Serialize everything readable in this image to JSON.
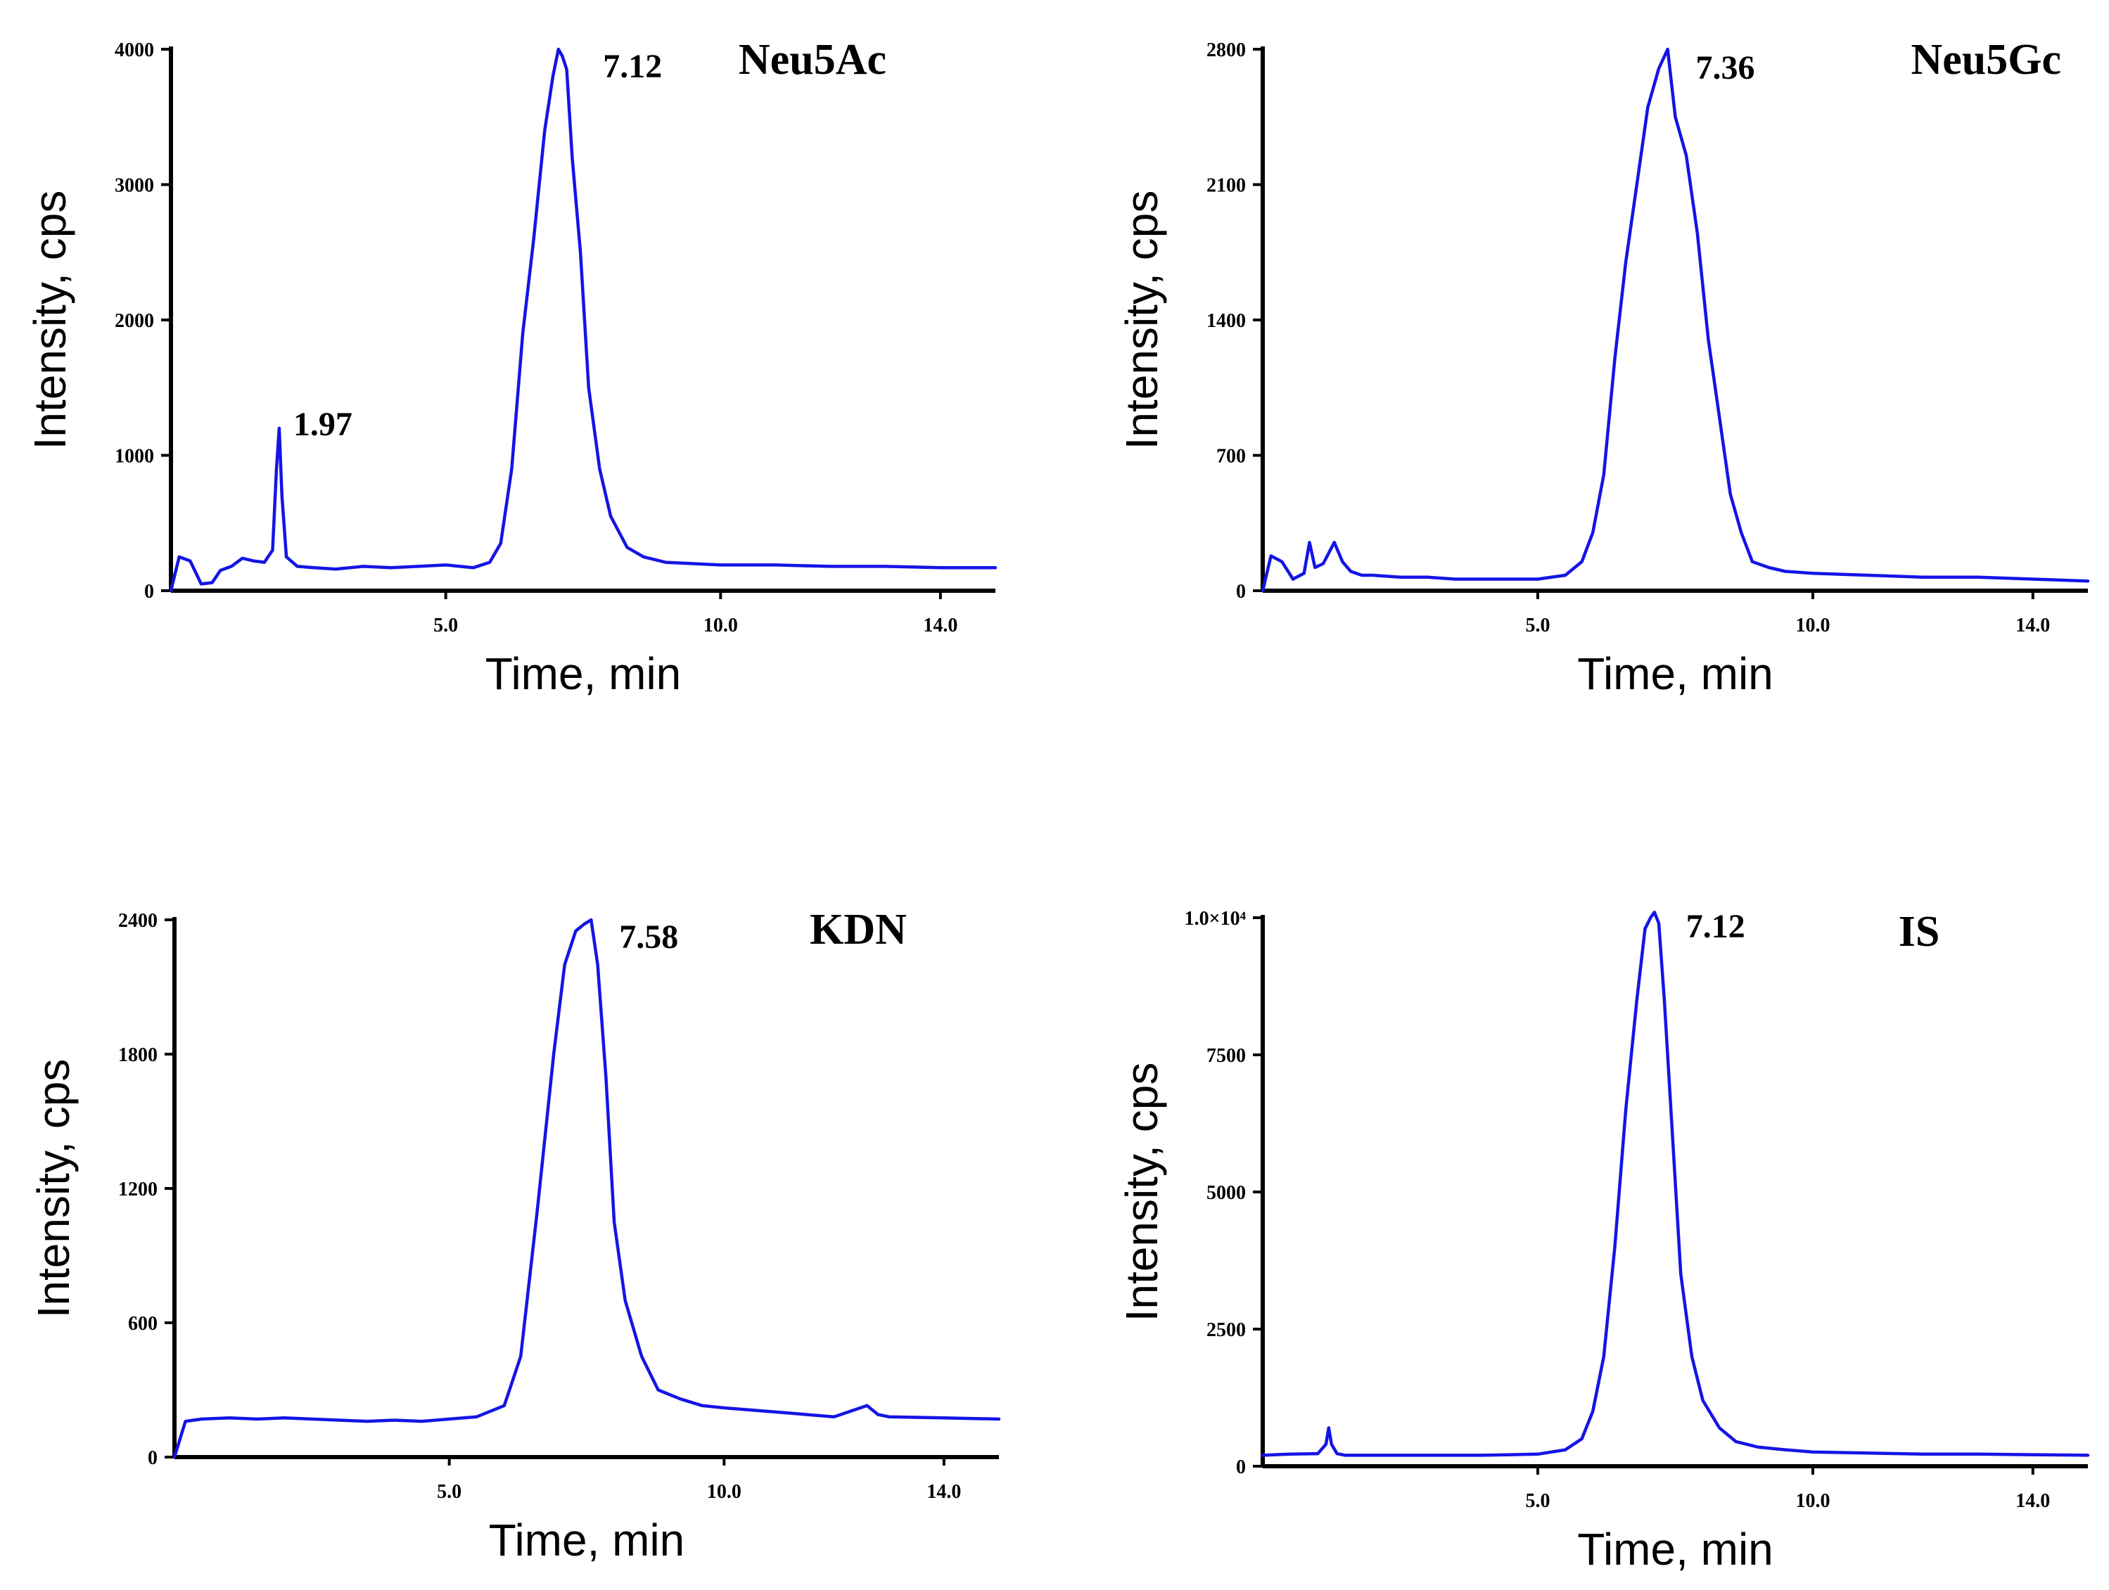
{
  "figure": {
    "line_color": "#1414e6",
    "axis_color": "#000000"
  },
  "chart_data": [
    {
      "type": "line",
      "title": "Neu5Ac",
      "xlabel": "Time, min",
      "ylabel": "Intensity, cps",
      "xlim": [
        0,
        15
      ],
      "ylim": [
        0,
        4000
      ],
      "xticks": [
        5.0,
        10.0,
        14.0
      ],
      "xtick_labels": [
        "5.0",
        "10.0",
        "14.0"
      ],
      "yticks": [
        0,
        1000,
        2000,
        3000,
        4000
      ],
      "ytick_labels": [
        "0",
        "1000",
        "2000",
        "3000",
        "4000"
      ],
      "peak_labels": [
        {
          "text": "7.12",
          "x": 7.12,
          "y": 4000
        },
        {
          "text": "1.97",
          "x": 1.97,
          "y": 1200
        }
      ],
      "series": [
        {
          "name": "Neu5Ac",
          "x": [
            0,
            0.15,
            0.35,
            0.55,
            0.75,
            0.9,
            1.1,
            1.3,
            1.5,
            1.7,
            1.85,
            1.92,
            1.97,
            2.02,
            2.1,
            2.3,
            2.6,
            3.0,
            3.5,
            4.0,
            4.5,
            5.0,
            5.5,
            5.8,
            6.0,
            6.2,
            6.4,
            6.6,
            6.8,
            6.95,
            7.05,
            7.12,
            7.2,
            7.3,
            7.45,
            7.6,
            7.8,
            8.0,
            8.3,
            8.6,
            9.0,
            9.5,
            10.0,
            11.0,
            12.0,
            13.0,
            14.0,
            15.0
          ],
          "y": [
            0,
            250,
            220,
            50,
            60,
            150,
            180,
            240,
            220,
            210,
            300,
            900,
            1200,
            700,
            250,
            180,
            170,
            160,
            180,
            170,
            180,
            190,
            170,
            210,
            350,
            900,
            1900,
            2600,
            3400,
            3800,
            4000,
            3950,
            3850,
            3200,
            2500,
            1500,
            900,
            550,
            320,
            250,
            210,
            200,
            190,
            190,
            180,
            180,
            170,
            170
          ]
        }
      ]
    },
    {
      "type": "line",
      "title": "Neu5Gc",
      "xlabel": "Time, min",
      "ylabel": "Intensity, cps",
      "xlim": [
        0,
        15
      ],
      "ylim": [
        0,
        2800
      ],
      "xticks": [
        5.0,
        10.0,
        14.0
      ],
      "xtick_labels": [
        "5.0",
        "10.0",
        "14.0"
      ],
      "yticks": [
        0,
        700,
        1400,
        2100,
        2800
      ],
      "ytick_labels": [
        "0",
        "700",
        "1400",
        "2100",
        "2800"
      ],
      "peak_labels": [
        {
          "text": "7.36",
          "x": 7.36,
          "y": 2800
        }
      ],
      "series": [
        {
          "name": "Neu5Gc",
          "x": [
            0,
            0.15,
            0.35,
            0.55,
            0.75,
            0.85,
            0.95,
            1.1,
            1.3,
            1.45,
            1.6,
            1.8,
            2.0,
            2.5,
            3.0,
            3.5,
            4.0,
            4.5,
            5.0,
            5.5,
            5.8,
            6.0,
            6.2,
            6.4,
            6.6,
            6.8,
            7.0,
            7.2,
            7.36,
            7.5,
            7.7,
            7.9,
            8.1,
            8.3,
            8.5,
            8.7,
            8.9,
            9.2,
            9.5,
            10.0,
            11.0,
            12.0,
            13.0,
            14.0,
            15.0
          ],
          "y": [
            0,
            180,
            150,
            60,
            90,
            250,
            120,
            140,
            250,
            150,
            100,
            80,
            80,
            70,
            70,
            60,
            60,
            60,
            60,
            80,
            150,
            300,
            600,
            1200,
            1700,
            2100,
            2500,
            2700,
            2800,
            2450,
            2250,
            1850,
            1300,
            900,
            500,
            300,
            150,
            120,
            100,
            90,
            80,
            70,
            70,
            60,
            50
          ]
        }
      ]
    },
    {
      "type": "line",
      "title": "KDN",
      "xlabel": "Time, min",
      "ylabel": "Intensity, cps",
      "xlim": [
        0,
        15
      ],
      "ylim": [
        0,
        2400
      ],
      "xticks": [
        5.0,
        10.0,
        14.0
      ],
      "xtick_labels": [
        "5.0",
        "10.0",
        "14.0"
      ],
      "yticks": [
        0,
        600,
        1200,
        1800,
        2400
      ],
      "ytick_labels": [
        "0",
        "600",
        "1200",
        "1800",
        "2400"
      ],
      "peak_labels": [
        {
          "text": "7.58",
          "x": 7.58,
          "y": 2400
        }
      ],
      "series": [
        {
          "name": "KDN",
          "x": [
            0,
            0.2,
            0.5,
            1.0,
            1.5,
            2.0,
            2.5,
            3.0,
            3.5,
            4.0,
            4.5,
            5.0,
            5.5,
            6.0,
            6.3,
            6.6,
            6.9,
            7.1,
            7.3,
            7.45,
            7.58,
            7.7,
            7.85,
            8.0,
            8.2,
            8.5,
            8.8,
            9.2,
            9.6,
            10.0,
            11.0,
            12.0,
            12.6,
            12.8,
            13.0,
            14.0,
            15.0
          ],
          "y": [
            0,
            160,
            170,
            175,
            170,
            175,
            170,
            165,
            160,
            165,
            160,
            170,
            180,
            230,
            450,
            1100,
            1800,
            2200,
            2350,
            2380,
            2400,
            2200,
            1700,
            1050,
            700,
            450,
            300,
            260,
            230,
            220,
            200,
            180,
            230,
            190,
            180,
            175,
            170
          ]
        }
      ]
    },
    {
      "type": "line",
      "title": "IS",
      "xlabel": "Time, min",
      "ylabel": "Intensity, cps",
      "xlim": [
        0,
        15
      ],
      "ylim": [
        0,
        10000
      ],
      "xticks": [
        5.0,
        10.0,
        14.0
      ],
      "xtick_labels": [
        "5.0",
        "10.0",
        "14.0"
      ],
      "yticks": [
        0,
        2500,
        5000,
        7500,
        10000
      ],
      "ytick_labels": [
        "0",
        "2500",
        "5000",
        "7500",
        "1.0×10⁴"
      ],
      "peak_labels": [
        {
          "text": "7.12",
          "x": 7.12,
          "y": 10000
        }
      ],
      "series": [
        {
          "name": "IS",
          "x": [
            0,
            0.5,
            1.0,
            1.15,
            1.2,
            1.25,
            1.35,
            1.5,
            2.0,
            3.0,
            4.0,
            5.0,
            5.5,
            5.8,
            6.0,
            6.2,
            6.4,
            6.6,
            6.8,
            6.95,
            7.05,
            7.12,
            7.2,
            7.3,
            7.45,
            7.6,
            7.8,
            8.0,
            8.3,
            8.6,
            9.0,
            9.5,
            10.0,
            11.0,
            12.0,
            13.0,
            14.0,
            15.0
          ],
          "y": [
            200,
            220,
            230,
            400,
            700,
            400,
            230,
            200,
            200,
            200,
            200,
            220,
            300,
            500,
            1000,
            2000,
            4000,
            6500,
            8500,
            9800,
            10000,
            10100,
            9900,
            8500,
            6000,
            3500,
            2000,
            1200,
            700,
            450,
            350,
            300,
            260,
            240,
            220,
            220,
            210,
            200
          ]
        }
      ]
    }
  ]
}
